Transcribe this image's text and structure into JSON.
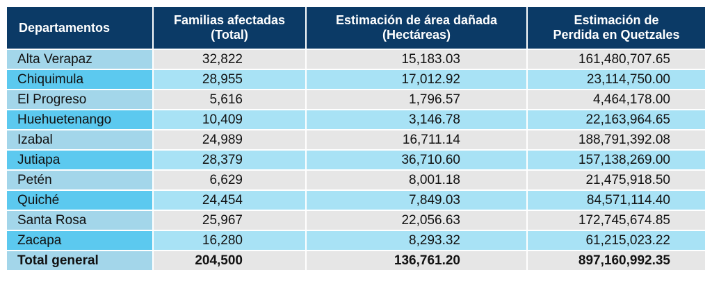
{
  "table": {
    "headers": [
      "Departamentos",
      "Familias afectadas (Total)",
      "Estimación de área dañada (Hectáreas)",
      "Estimación de Perdida en Quetzales"
    ],
    "header_lines": [
      [
        "Departamentos"
      ],
      [
        "Familias afectadas",
        "(Total)"
      ],
      [
        "Estimación de área dañada",
        "(Hectáreas)"
      ],
      [
        "Estimación de",
        "Perdida en Quetzales"
      ]
    ],
    "rows": [
      [
        "Alta Verapaz",
        "32,822",
        "15,183.03",
        "161,480,707.65"
      ],
      [
        "Chiquimula",
        "28,955",
        "17,012.92",
        "23,114,750.00"
      ],
      [
        "El Progreso",
        "5,616",
        "1,796.57",
        "4,464,178.00"
      ],
      [
        "Huehuetenango",
        "10,409",
        "3,146.78",
        "22,163,964.65"
      ],
      [
        "Izabal",
        "24,989",
        "16,711.14",
        "188,791,392.08"
      ],
      [
        "Jutiapa",
        "28,379",
        "36,710.60",
        "157,138,269.00"
      ],
      [
        "Petén",
        "6,629",
        "8,001.18",
        "21,475,918.50"
      ],
      [
        "Quiché",
        "24,454",
        "7,849.03",
        "84,571,114.40"
      ],
      [
        "Santa Rosa",
        "25,967",
        "22,056.63",
        "172,745,674.85"
      ],
      [
        "Zacapa",
        "16,280",
        "8,293.32",
        "61,215,023.22"
      ]
    ],
    "total": [
      "Total general",
      "204,500",
      "136,761.20",
      "897,160,992.35"
    ]
  },
  "colors": {
    "header_bg": "#0b3a66",
    "name_odd": "#a3d6ea",
    "name_even": "#5cc9ef",
    "value_odd": "#e6e6e6",
    "value_even": "#a8e2f5"
  }
}
